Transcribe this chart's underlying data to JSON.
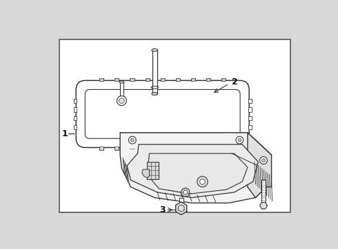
{
  "bg_color": "#dcdcdc",
  "border_color": "#555555",
  "line_color": "#333333",
  "label_color": "#111111",
  "fig_width": 4.9,
  "fig_height": 3.6,
  "dpi": 100,
  "label_1": [
    0.055,
    0.44
  ],
  "label_2": [
    0.72,
    0.74
  ],
  "label_3": [
    0.33,
    0.075
  ]
}
